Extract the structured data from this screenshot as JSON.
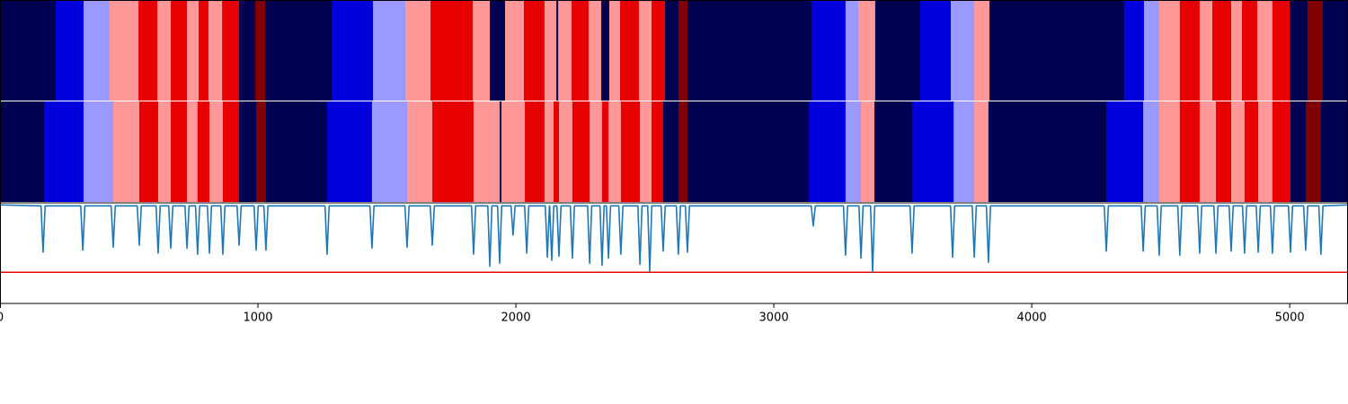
{
  "chart_data": {
    "type": "line",
    "xlim": [
      0,
      5226
    ],
    "xticks": [
      0,
      1000,
      2000,
      3000,
      4000,
      5000
    ],
    "ylim": [
      0,
      1
    ],
    "bands": [
      {
        "edges": [
          0,
          216,
          324,
          425,
          537,
          610,
          662,
          725,
          770,
          808,
          861,
          927,
          989,
          1028,
          1286,
          1446,
          1571,
          1669,
          1833,
          1899,
          1958,
          2031,
          2111,
          2157,
          2164,
          2216,
          2282,
          2331,
          2362,
          2404,
          2477,
          2526,
          2578,
          2630,
          2665,
          3146,
          3278,
          3327,
          3393,
          3568,
          3686,
          3777,
          3836,
          4358,
          4435,
          4494,
          4574,
          4651,
          4700,
          4773,
          4815,
          4874,
          4933,
          5000,
          5069,
          5128,
          5226
        ],
        "colors": [
          "#000050",
          "#0000dd",
          "#9999ff",
          "#ff9999",
          "#e60000",
          "#ff9999",
          "#e60000",
          "#ff9999",
          "#e60000",
          "#ff9999",
          "#e60000",
          "#000050",
          "#800000",
          "#000050",
          "#0000dd",
          "#9999ff",
          "#ff9999",
          "#e60000",
          "#ff9999",
          "#000050",
          "#ff9999",
          "#e60000",
          "#ff9999",
          "#000050",
          "#ff9999",
          "#e60000",
          "#ff9999",
          "#000050",
          "#ff9999",
          "#e60000",
          "#ff9999",
          "#e60000",
          "#000050",
          "#800000",
          "#000050",
          "#0000dd",
          "#9999ff",
          "#ff9999",
          "#000050",
          "#0000dd",
          "#9999ff",
          "#ff9999",
          "#000050",
          "#0000dd",
          "#9999ff",
          "#ff9999",
          "#e60000",
          "#ff9999",
          "#e60000",
          "#ff9999",
          "#e60000",
          "#ff9999",
          "#e60000",
          "#000050",
          "#800000",
          "#000050"
        ]
      },
      {
        "edges": [
          0,
          171,
          324,
          439,
          540,
          613,
          662,
          725,
          766,
          812,
          864,
          927,
          993,
          1031,
          1268,
          1442,
          1578,
          1676,
          1836,
          1937,
          1944,
          2035,
          2111,
          2146,
          2167,
          2219,
          2286,
          2334,
          2359,
          2407,
          2481,
          2526,
          2571,
          2630,
          2665,
          3136,
          3278,
          3338,
          3390,
          3536,
          3697,
          3777,
          3832,
          4289,
          4432,
          4494,
          4574,
          4651,
          4714,
          4773,
          4825,
          4878,
          4933,
          5003,
          5062,
          5121,
          5226
        ],
        "colors": [
          "#000050",
          "#0000dd",
          "#9999ff",
          "#ff9999",
          "#e60000",
          "#ff9999",
          "#e60000",
          "#ff9999",
          "#e60000",
          "#ff9999",
          "#e60000",
          "#000050",
          "#800000",
          "#000050",
          "#0000dd",
          "#9999ff",
          "#ff9999",
          "#e60000",
          "#ff9999",
          "#000050",
          "#ff9999",
          "#e60000",
          "#ff9999",
          "#e60000",
          "#ff9999",
          "#e60000",
          "#ff9999",
          "#e60000",
          "#ff9999",
          "#e60000",
          "#ff9999",
          "#e60000",
          "#000050",
          "#800000",
          "#000050",
          "#0000dd",
          "#9999ff",
          "#ff9999",
          "#000050",
          "#0000dd",
          "#9999ff",
          "#ff9999",
          "#000050",
          "#0000dd",
          "#9999ff",
          "#ff9999",
          "#e60000",
          "#ff9999",
          "#e60000",
          "#ff9999",
          "#e60000",
          "#ff9999",
          "#e60000",
          "#000050",
          "#800000",
          "#000050"
        ]
      }
    ],
    "x": [
      0,
      159,
      167,
      175,
      313,
      321,
      329,
      431,
      439,
      447,
      532,
      540,
      548,
      605,
      613,
      621,
      654,
      662,
      670,
      717,
      725,
      733,
      758,
      766,
      774,
      804,
      812,
      820,
      856,
      864,
      872,
      919,
      927,
      935,
      985,
      993,
      1001,
      1023,
      1031,
      1039,
      1260,
      1268,
      1276,
      1434,
      1442,
      1450,
      1570,
      1578,
      1586,
      1668,
      1676,
      1684,
      1828,
      1836,
      1844,
      1891,
      1899,
      1907,
      1929,
      1937,
      1945,
      1981,
      1989,
      1997,
      2034,
      2042,
      2050,
      2114,
      2122,
      2130,
      2131,
      2139,
      2147,
      2159,
      2167,
      2175,
      2211,
      2219,
      2227,
      2278,
      2286,
      2294,
      2326,
      2334,
      2342,
      2351,
      2359,
      2367,
      2399,
      2407,
      2415,
      2473,
      2481,
      2489,
      2511,
      2519,
      2527,
      2563,
      2571,
      2579,
      2622,
      2630,
      2638,
      2657,
      2665,
      2673,
      3145,
      3153,
      3161,
      3270,
      3278,
      3286,
      3330,
      3338,
      3346,
      3375,
      3383,
      3391,
      3528,
      3536,
      3544,
      3685,
      3693,
      3701,
      3769,
      3777,
      3785,
      3824,
      3832,
      3840,
      4281,
      4289,
      4297,
      4424,
      4432,
      4440,
      4486,
      4494,
      4502,
      4566,
      4574,
      4582,
      4643,
      4651,
      4659,
      4706,
      4714,
      4722,
      4765,
      4773,
      4781,
      4817,
      4825,
      4833,
      4870,
      4878,
      4886,
      4925,
      4933,
      4941,
      4995,
      5003,
      5011,
      5054,
      5062,
      5070,
      5113,
      5121,
      5129,
      5226
    ],
    "series": [
      {
        "color": "#1f77b4",
        "values": [
          0.98,
          0.97,
          0.51,
          0.97,
          0.97,
          0.53,
          0.97,
          0.97,
          0.56,
          0.97,
          0.97,
          0.58,
          0.97,
          0.97,
          0.5,
          0.97,
          0.97,
          0.55,
          0.97,
          0.97,
          0.55,
          0.97,
          0.97,
          0.49,
          0.97,
          0.97,
          0.5,
          0.97,
          0.97,
          0.49,
          0.97,
          0.97,
          0.58,
          0.97,
          0.97,
          0.53,
          0.97,
          0.97,
          0.53,
          0.97,
          0.97,
          0.49,
          0.97,
          0.97,
          0.55,
          0.97,
          0.97,
          0.56,
          0.97,
          0.97,
          0.58,
          0.97,
          0.97,
          0.49,
          0.97,
          0.97,
          0.37,
          0.97,
          0.97,
          0.4,
          0.97,
          0.97,
          0.68,
          0.97,
          0.97,
          0.5,
          0.97,
          0.97,
          0.46,
          0.97,
          0.97,
          0.43,
          0.97,
          0.97,
          0.47,
          0.97,
          0.97,
          0.45,
          0.97,
          0.97,
          0.4,
          0.97,
          0.97,
          0.38,
          0.97,
          0.97,
          0.45,
          0.97,
          0.97,
          0.49,
          0.97,
          0.97,
          0.39,
          0.97,
          0.97,
          0.32,
          0.97,
          0.97,
          0.52,
          0.97,
          0.97,
          0.49,
          0.97,
          0.97,
          0.51,
          0.97,
          0.97,
          0.77,
          0.97,
          0.97,
          0.48,
          0.97,
          0.97,
          0.45,
          0.97,
          0.97,
          0.31,
          0.97,
          0.97,
          0.5,
          0.97,
          0.97,
          0.46,
          0.97,
          0.97,
          0.46,
          0.97,
          0.97,
          0.41,
          0.97,
          0.97,
          0.52,
          0.97,
          0.97,
          0.52,
          0.97,
          0.97,
          0.48,
          0.97,
          0.97,
          0.48,
          0.97,
          0.97,
          0.5,
          0.97,
          0.97,
          0.5,
          0.97,
          0.97,
          0.52,
          0.97,
          0.97,
          0.5,
          0.97,
          0.97,
          0.51,
          0.97,
          0.97,
          0.5,
          0.97,
          0.97,
          0.51,
          0.97,
          0.97,
          0.53,
          0.97,
          0.97,
          0.49,
          0.97,
          0.98
        ]
      }
    ],
    "threshold": {
      "value": 0.31,
      "color": "#e60000"
    }
  }
}
